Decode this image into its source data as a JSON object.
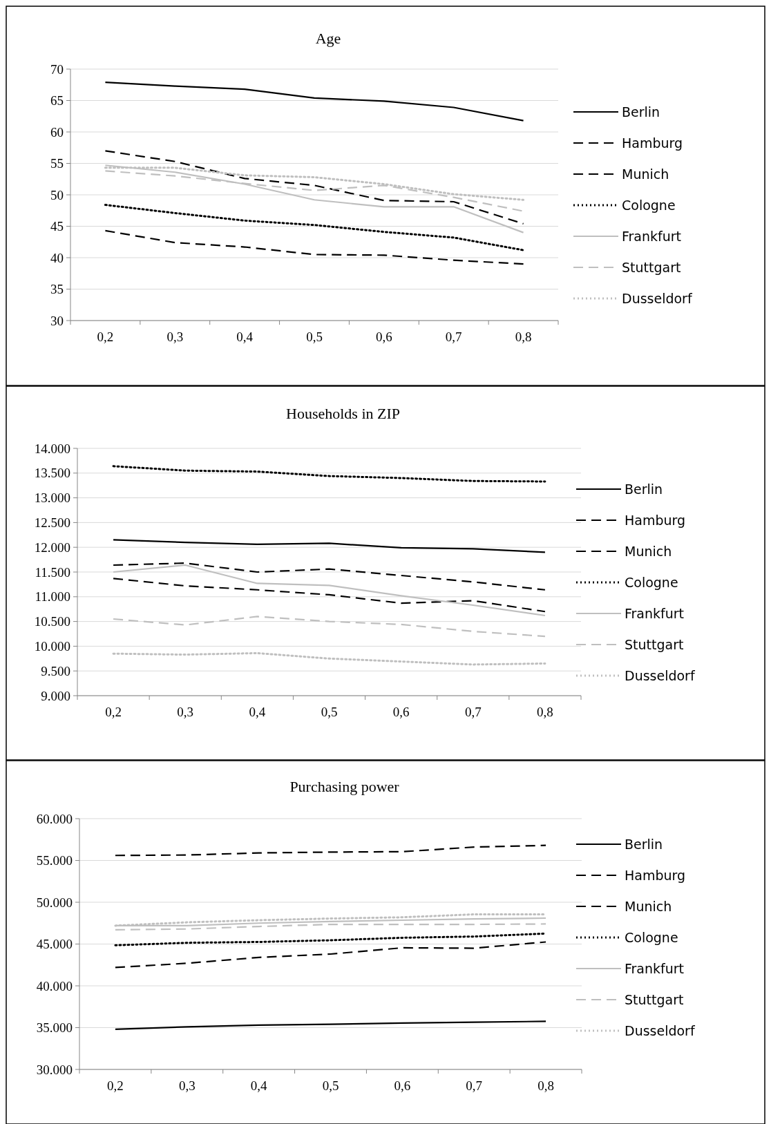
{
  "chart_data": [
    {
      "type": "line",
      "title": "Age",
      "categories": [
        "0,2",
        "0,3",
        "0,4",
        "0,5",
        "0,6",
        "0,7",
        "0,8"
      ],
      "ylim": [
        30,
        70
      ],
      "yticks": [
        30,
        35,
        40,
        45,
        50,
        55,
        60,
        65,
        70
      ],
      "grid": "y",
      "legend": "right",
      "series": [
        {
          "name": "Berlin",
          "color": "#000000",
          "line_style": "solid",
          "values": [
            67.9,
            67.3,
            66.8,
            65.4,
            64.9,
            63.9,
            61.8
          ]
        },
        {
          "name": "Hamburg",
          "color": "#000000",
          "line_style": "dashed",
          "values": [
            57.0,
            55.3,
            52.6,
            51.5,
            49.1,
            48.9,
            45.4
          ]
        },
        {
          "name": "Munich",
          "color": "#000000",
          "line_style": "dashed",
          "values": [
            44.3,
            42.4,
            41.7,
            40.5,
            40.4,
            39.6,
            39.0
          ]
        },
        {
          "name": "Cologne",
          "color": "#000000",
          "line_style": "dotted",
          "values": [
            48.4,
            47.1,
            45.9,
            45.2,
            44.1,
            43.2,
            41.2
          ]
        },
        {
          "name": "Frankfurt",
          "color": "#bfbfbf",
          "line_style": "solid",
          "values": [
            54.7,
            53.6,
            51.7,
            49.2,
            48.1,
            48.1,
            44.0
          ]
        },
        {
          "name": "Stuttgart",
          "color": "#bfbfbf",
          "line_style": "dashed",
          "values": [
            53.8,
            53.0,
            51.8,
            50.7,
            51.5,
            49.6,
            47.4
          ]
        },
        {
          "name": "Dusseldorf",
          "color": "#bfbfbf",
          "line_style": "dotted",
          "values": [
            54.3,
            54.3,
            53.1,
            52.8,
            51.7,
            50.1,
            49.2
          ]
        }
      ]
    },
    {
      "type": "line",
      "title": "Households in ZIP",
      "categories": [
        "0,2",
        "0,3",
        "0,4",
        "0,5",
        "0,6",
        "0,7",
        "0,8"
      ],
      "ylim": [
        9000,
        14000
      ],
      "yticks": [
        {
          "value": 9000,
          "label": "9.000"
        },
        {
          "value": 9500,
          "label": "9.500"
        },
        {
          "value": 10000,
          "label": "10.000"
        },
        {
          "value": 10500,
          "label": "10.500"
        },
        {
          "value": 11000,
          "label": "11.000"
        },
        {
          "value": 11500,
          "label": "11.500"
        },
        {
          "value": 12000,
          "label": "12.000"
        },
        {
          "value": 12500,
          "label": "12.500"
        },
        {
          "value": 13000,
          "label": "13.000"
        },
        {
          "value": 13500,
          "label": "13.500"
        },
        {
          "value": 14000,
          "label": "14.000"
        }
      ],
      "grid": "y",
      "legend": "right",
      "series": [
        {
          "name": "Berlin",
          "color": "#000000",
          "line_style": "solid",
          "values": [
            12150,
            12100,
            12060,
            12080,
            11990,
            11970,
            11900
          ]
        },
        {
          "name": "Hamburg",
          "color": "#000000",
          "line_style": "dashed",
          "values": [
            11370,
            11220,
            11140,
            11040,
            10870,
            10920,
            10700
          ]
        },
        {
          "name": "Munich",
          "color": "#000000",
          "line_style": "dashed",
          "values": [
            11640,
            11680,
            11500,
            11560,
            11430,
            11300,
            11140
          ]
        },
        {
          "name": "Cologne",
          "color": "#000000",
          "line_style": "dotted",
          "values": [
            13640,
            13550,
            13530,
            13440,
            13400,
            13340,
            13330
          ]
        },
        {
          "name": "Frankfurt",
          "color": "#bfbfbf",
          "line_style": "solid",
          "values": [
            11500,
            11640,
            11270,
            11230,
            11020,
            10830,
            10620
          ]
        },
        {
          "name": "Stuttgart",
          "color": "#bfbfbf",
          "line_style": "dashed",
          "values": [
            10550,
            10430,
            10600,
            10500,
            10440,
            10300,
            10200
          ]
        },
        {
          "name": "Dusseldorf",
          "color": "#bfbfbf",
          "line_style": "dotted",
          "values": [
            9850,
            9830,
            9860,
            9750,
            9690,
            9630,
            9650
          ]
        }
      ]
    },
    {
      "type": "line",
      "title": "Purchasing power",
      "categories": [
        "0,2",
        "0,3",
        "0,4",
        "0,5",
        "0,6",
        "0,7",
        "0,8"
      ],
      "ylim": [
        30000,
        60000
      ],
      "yticks": [
        {
          "value": 30000,
          "label": "30.000"
        },
        {
          "value": 35000,
          "label": "35.000"
        },
        {
          "value": 40000,
          "label": "40.000"
        },
        {
          "value": 45000,
          "label": "45.000"
        },
        {
          "value": 50000,
          "label": "50.000"
        },
        {
          "value": 55000,
          "label": "55.000"
        },
        {
          "value": 60000,
          "label": "60.000"
        }
      ],
      "grid": "y",
      "legend": "right",
      "series": [
        {
          "name": "Berlin",
          "color": "#000000",
          "line_style": "solid",
          "values": [
            34800,
            35100,
            35300,
            35400,
            35550,
            35650,
            35750
          ]
        },
        {
          "name": "Hamburg",
          "color": "#000000",
          "line_style": "dashed",
          "values": [
            42200,
            42700,
            43400,
            43800,
            44550,
            44500,
            45250
          ]
        },
        {
          "name": "Munich",
          "color": "#000000",
          "line_style": "dashed",
          "values": [
            55600,
            55650,
            55900,
            56000,
            56050,
            56600,
            56800
          ]
        },
        {
          "name": "Cologne",
          "color": "#000000",
          "line_style": "dotted",
          "values": [
            44850,
            45150,
            45250,
            45450,
            45750,
            45900,
            46250
          ]
        },
        {
          "name": "Frankfurt",
          "color": "#bfbfbf",
          "line_style": "solid",
          "values": [
            47200,
            47200,
            47500,
            47700,
            47850,
            48000,
            48100
          ]
        },
        {
          "name": "Stuttgart",
          "color": "#bfbfbf",
          "line_style": "dashed",
          "values": [
            46700,
            46800,
            47100,
            47350,
            47350,
            47350,
            47400
          ]
        },
        {
          "name": "Dusseldorf",
          "color": "#bfbfbf",
          "line_style": "dotted",
          "values": [
            47200,
            47600,
            47850,
            48050,
            48200,
            48550,
            48550
          ]
        }
      ]
    }
  ]
}
